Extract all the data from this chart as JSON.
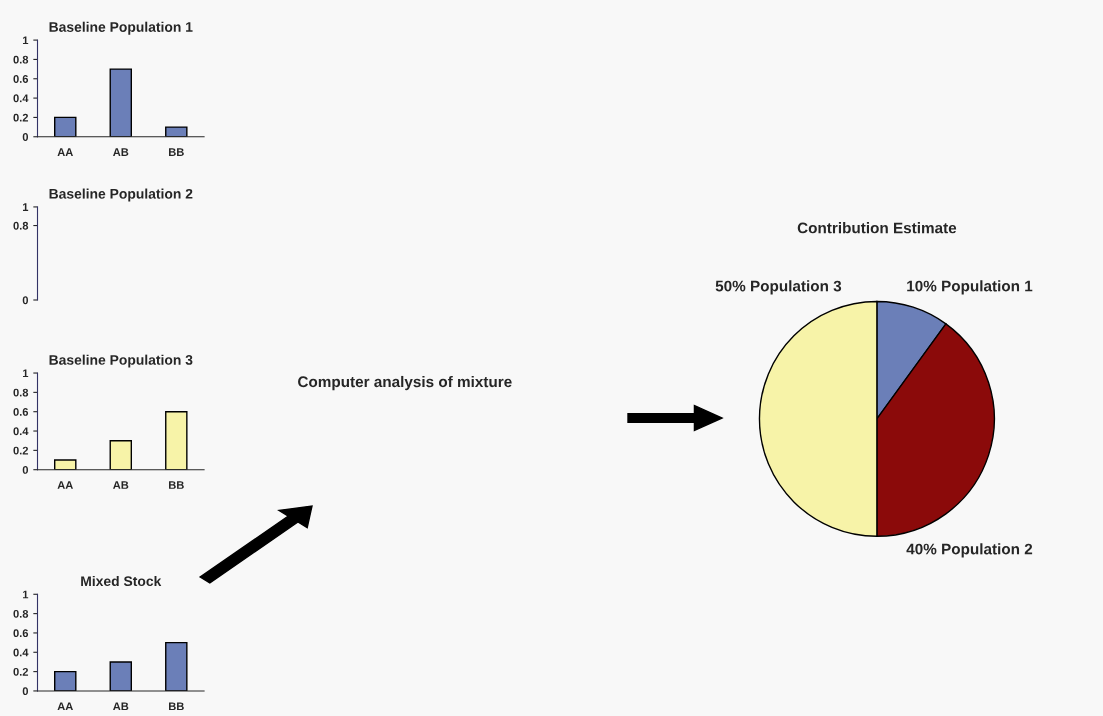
{
  "chart_data": [
    {
      "type": "bar",
      "title": "Baseline Population 1",
      "categories": [
        "AA",
        "AB",
        "BB"
      ],
      "values": [
        0.2,
        0.7,
        0.1
      ],
      "color": "#6b7fb8",
      "ylim": [
        0,
        1
      ],
      "yticks": [
        0,
        0.2,
        0.4,
        0.6,
        0.8,
        1
      ],
      "grid": false,
      "legend": false
    },
    {
      "type": "bar",
      "title": "Baseline Population 2",
      "categories": [
        null,
        null,
        null
      ],
      "values": [
        null,
        null,
        null
      ],
      "ylim": [
        0,
        1
      ],
      "yticks": [
        0,
        0.8,
        1
      ],
      "grid": false,
      "legend": false
    },
    {
      "type": "bar",
      "title": "Baseline Population 3",
      "categories": [
        "AA",
        "AB",
        "BB"
      ],
      "values": [
        0.1,
        0.3,
        0.6
      ],
      "color": "#f7f3a8",
      "ylim": [
        0,
        1
      ],
      "yticks": [
        0,
        0.2,
        0.4,
        0.6,
        0.8,
        1
      ],
      "grid": false,
      "legend": false
    },
    {
      "type": "bar",
      "title": "Mixed Stock",
      "categories": [
        "AA",
        "AB",
        "BB"
      ],
      "values": [
        0.2,
        0.3,
        0.5
      ],
      "color": "#6b7fb8",
      "ylim": [
        0,
        1
      ],
      "yticks": [
        0,
        0.2,
        0.4,
        0.6,
        0.8,
        1
      ],
      "grid": false,
      "legend": false
    },
    {
      "type": "pie",
      "title": "Contribution Estimate",
      "categories": [
        "10% Population 1",
        "40% Population 2",
        "50% Population 3"
      ],
      "values": [
        10,
        40,
        50
      ],
      "colors": [
        "#6b7fb8",
        "#8b0a0a",
        "#f7f3a8"
      ],
      "annotations": [
        "Computer analysis of mixture"
      ],
      "legend": false
    }
  ]
}
